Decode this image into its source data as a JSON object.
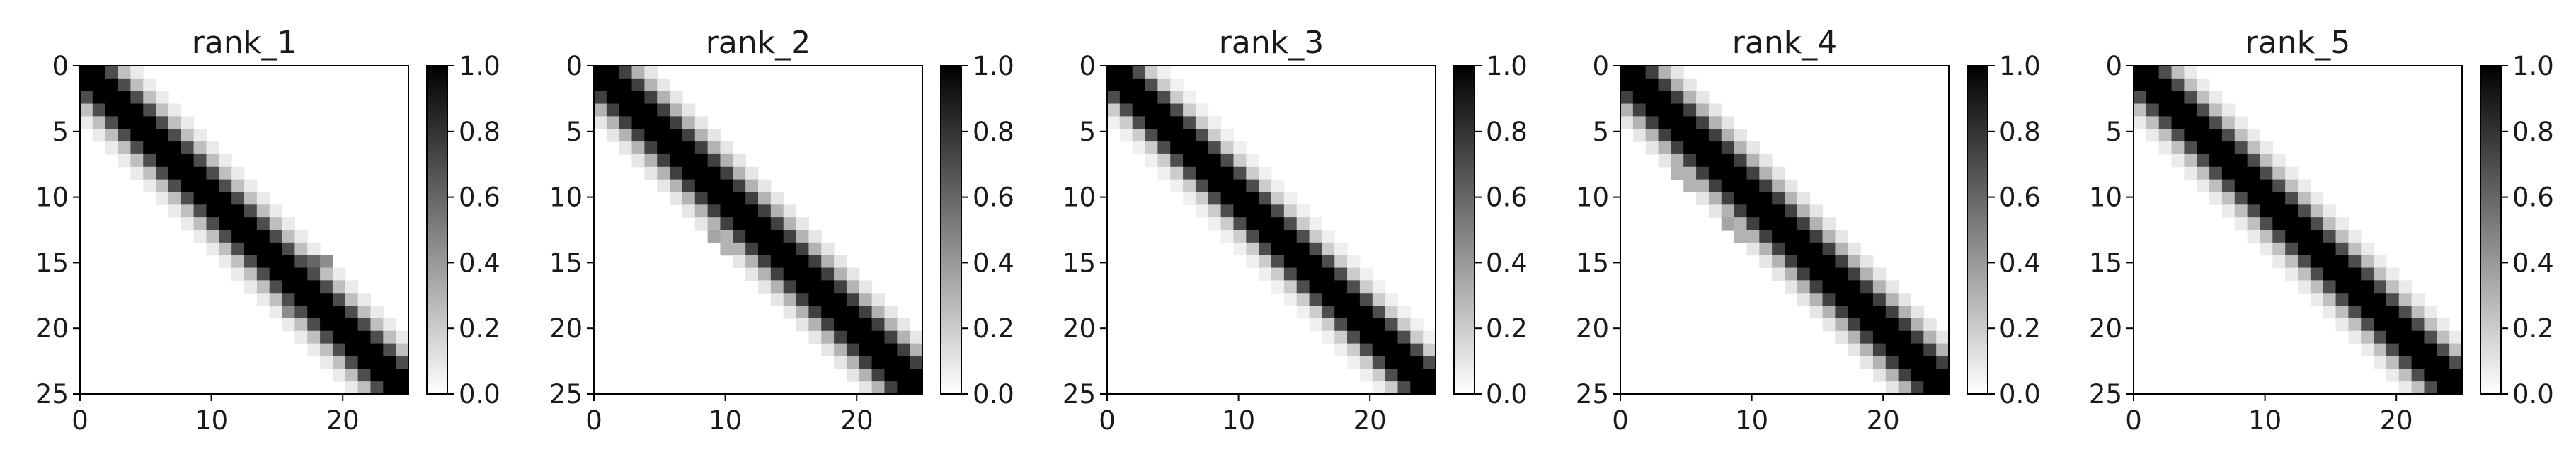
{
  "chart_data": [
    {
      "type": "heatmap",
      "title": "rank_1",
      "colormap": "binary",
      "grid": false,
      "size": 26,
      "x_ticks": [
        "0",
        "10",
        "20"
      ],
      "y_ticks": [
        "0",
        "5",
        "10",
        "15",
        "20",
        "25"
      ],
      "xlim": [
        0,
        25
      ],
      "ylim": [
        25,
        0
      ],
      "colorbar": {
        "range": [
          0.0,
          1.0
        ],
        "ticks": [
          "1.0",
          "0.8",
          "0.6",
          "0.4",
          "0.2",
          "0.0"
        ]
      },
      "band": {
        "lag": 2,
        "peak": 1.0,
        "falloff": [
          0.95,
          0.7,
          0.25,
          0.08
        ]
      },
      "extra_cells": [
        [
          15,
          18,
          0.6
        ],
        [
          15,
          19,
          0.45
        ],
        [
          16,
          18,
          0.5
        ],
        [
          19,
          16,
          0.45
        ],
        [
          18,
          16,
          0.35
        ]
      ]
    },
    {
      "type": "heatmap",
      "title": "rank_2",
      "colormap": "binary",
      "grid": false,
      "size": 26,
      "x_ticks": [
        "0",
        "10",
        "20"
      ],
      "y_ticks": [
        "0",
        "5",
        "10",
        "15",
        "20",
        "25"
      ],
      "xlim": [
        0,
        25
      ],
      "ylim": [
        25,
        0
      ],
      "colorbar": {
        "range": [
          0.0,
          1.0
        ],
        "ticks": [
          "1.0",
          "0.8",
          "0.6",
          "0.4",
          "0.2",
          "0.0"
        ]
      },
      "band": {
        "lag": 2,
        "peak": 1.0,
        "falloff": [
          0.95,
          0.75,
          0.3,
          0.1
        ]
      },
      "extra_cells": [
        [
          13,
          9,
          0.35
        ],
        [
          14,
          10,
          0.3
        ]
      ]
    },
    {
      "type": "heatmap",
      "title": "rank_3",
      "colormap": "binary",
      "grid": false,
      "size": 26,
      "x_ticks": [
        "0",
        "10",
        "20"
      ],
      "y_ticks": [
        "0",
        "5",
        "10",
        "15",
        "20",
        "25"
      ],
      "xlim": [
        0,
        25
      ],
      "ylim": [
        25,
        0
      ],
      "colorbar": {
        "range": [
          0.0,
          1.0
        ],
        "ticks": [
          "1.0",
          "0.8",
          "0.6",
          "0.4",
          "0.2",
          "0.0"
        ]
      },
      "band": {
        "lag": 2,
        "peak": 1.0,
        "falloff": [
          0.95,
          0.7,
          0.2,
          0.06
        ]
      },
      "extra_cells": []
    },
    {
      "type": "heatmap",
      "title": "rank_4",
      "colormap": "binary",
      "grid": false,
      "size": 26,
      "x_ticks": [
        "0",
        "10",
        "20"
      ],
      "y_ticks": [
        "0",
        "5",
        "10",
        "15",
        "20",
        "25"
      ],
      "xlim": [
        0,
        25
      ],
      "ylim": [
        25,
        0
      ],
      "colorbar": {
        "range": [
          0.0,
          1.0
        ],
        "ticks": [
          "1.0",
          "0.8",
          "0.6",
          "0.4",
          "0.2",
          "0.0"
        ]
      },
      "band": {
        "lag": 2,
        "peak": 1.0,
        "falloff": [
          0.95,
          0.75,
          0.3,
          0.1
        ]
      },
      "extra_cells": [
        [
          8,
          4,
          0.3
        ],
        [
          9,
          5,
          0.3
        ],
        [
          12,
          8,
          0.35
        ],
        [
          13,
          9,
          0.3
        ],
        [
          14,
          13,
          0.15
        ]
      ]
    },
    {
      "type": "heatmap",
      "title": "rank_5",
      "colormap": "binary",
      "grid": false,
      "size": 26,
      "x_ticks": [
        "0",
        "10",
        "20"
      ],
      "y_ticks": [
        "0",
        "5",
        "10",
        "15",
        "20",
        "25"
      ],
      "xlim": [
        0,
        25
      ],
      "ylim": [
        25,
        0
      ],
      "colorbar": {
        "range": [
          0.0,
          1.0
        ],
        "ticks": [
          "1.0",
          "0.8",
          "0.6",
          "0.4",
          "0.2",
          "0.0"
        ]
      },
      "band": {
        "lag": 2,
        "peak": 1.0,
        "falloff": [
          0.95,
          0.7,
          0.25,
          0.08
        ]
      },
      "extra_cells": []
    }
  ]
}
